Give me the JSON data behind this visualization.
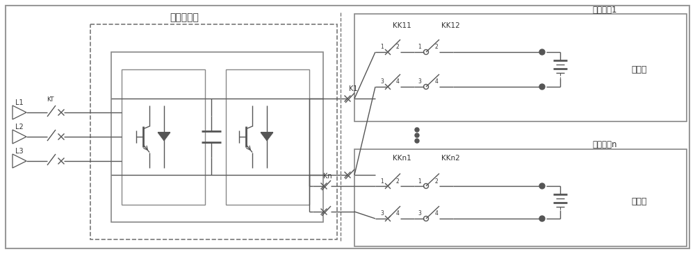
{
  "fig_width": 10.0,
  "fig_height": 3.66,
  "dpi": 100,
  "bg_color": "#ffffff",
  "lc": "#555555",
  "lw": 1.0,
  "tc": "#333333",
  "title_top": "电池模块1",
  "title_bottom": "电池模块n",
  "label_inverter": "储能变流器",
  "label_battery": "电池簇",
  "label_L1": "L1",
  "label_L2": "L2",
  "label_L3": "L3",
  "label_KT": "KT",
  "label_K1": "K1",
  "label_Kn": "Kn",
  "label_KK11": "KK11",
  "label_KK12": "KK12",
  "label_KKn1": "KKn1",
  "label_KKn2": "KKn2"
}
